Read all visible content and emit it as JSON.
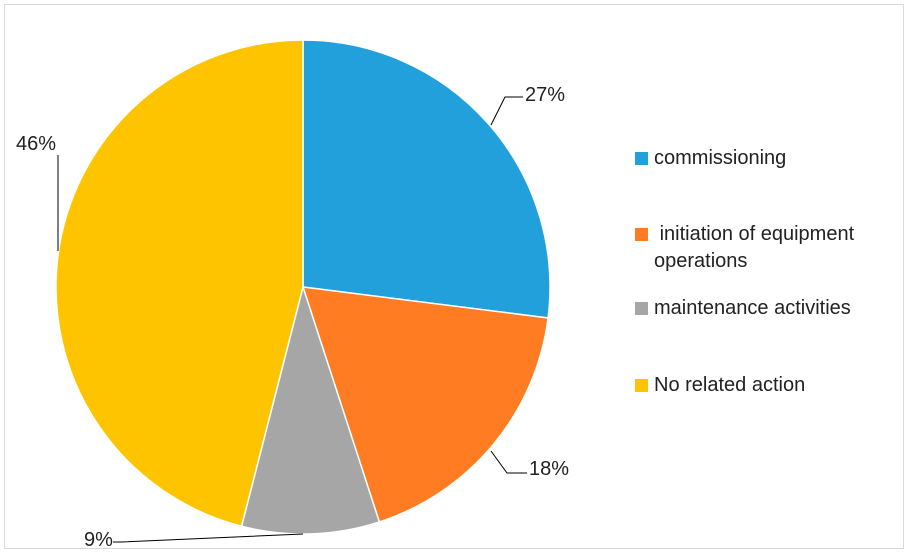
{
  "chart_data": {
    "type": "pie",
    "title": "",
    "slices": [
      {
        "label": "commissioning",
        "value": 27,
        "display": "27%",
        "color": "#22A0DC"
      },
      {
        "label": " initiation of equipment\noperations",
        "value": 18,
        "display": "18%",
        "color": "#FF7C22"
      },
      {
        "label": "maintenance activities",
        "value": 9,
        "display": "9%",
        "color": "#A6A6A6"
      },
      {
        "label": "No related action",
        "value": 46,
        "display": "46%",
        "color": "#FFC400"
      }
    ],
    "legend_position": "right",
    "start_angle": "12 o'clock",
    "direction": "clockwise"
  }
}
